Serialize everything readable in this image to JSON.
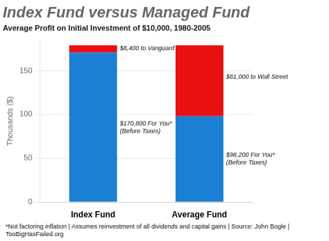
{
  "chart_data": {
    "type": "bar",
    "title": "Index Fund versus Managed Fund",
    "subtitle": "Average Profit on Initial Investment of $10,000, 1980-2005",
    "footnote": "*Not factoring inflation  |  Assumes reinvestment of all dividends and capital gains  |  Source: John Bogle  |  TooBigHasFailed.org",
    "categories": [
      "Index Fund",
      "Average Fund"
    ],
    "series": [
      {
        "color": "#1b7fd4",
        "values": [
          170.8,
          98.2
        ],
        "value_labels": [
          "$170,800 For You*\n(Before Taxes)",
          "$98,200 For You*\n(Before Taxes)"
        ]
      },
      {
        "color": "#e81010",
        "values": [
          8.4,
          81.0
        ],
        "value_labels": [
          "$8,400 to Vanguard",
          "$81,000 to Wall Street"
        ]
      }
    ],
    "ylabel": "Thousands ($)",
    "ylim": [
      0,
      185
    ],
    "yticks": [
      0,
      50,
      100,
      150
    ],
    "stacked": true,
    "grid": true,
    "data_labels": true
  }
}
